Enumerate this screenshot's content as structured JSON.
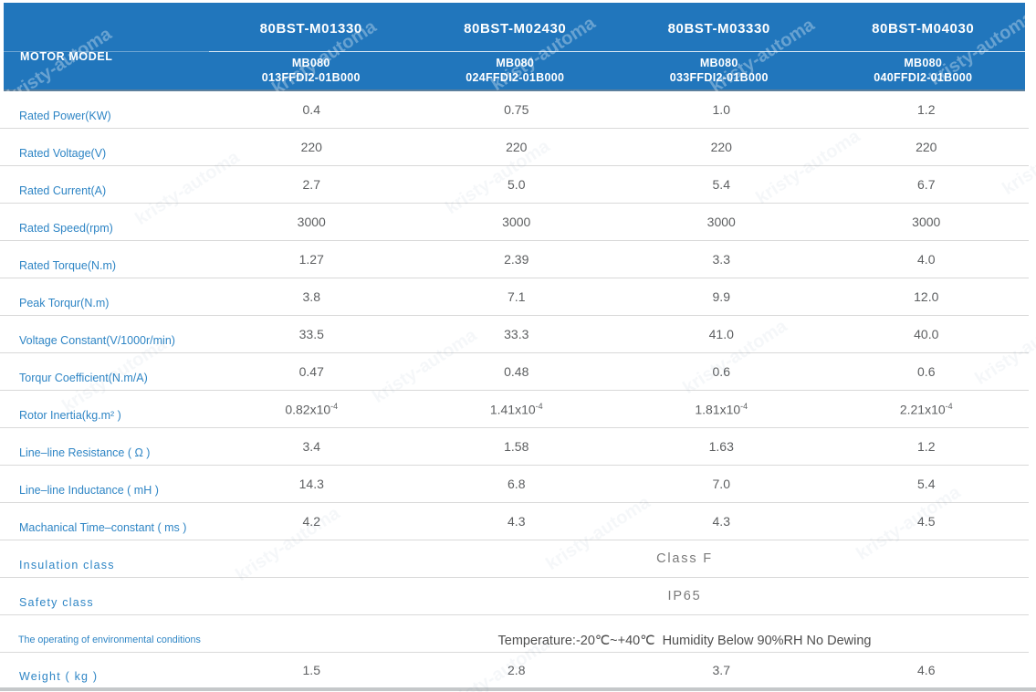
{
  "watermark": {
    "text": "kristy-automa"
  },
  "header": {
    "row_label": "MOTOR MODEL",
    "columns": [
      {
        "model": "80BST-M01330",
        "series": "MB080",
        "part": "013FFDI2-01B000"
      },
      {
        "model": "80BST-M02430",
        "series": "MB080",
        "part": "024FFDI2-01B000"
      },
      {
        "model": "80BST-M03330",
        "series": "MB080",
        "part": "033FFDI2-01B000"
      },
      {
        "model": "80BST-M04030",
        "series": "MB080",
        "part": "040FFDI2-01B000"
      }
    ]
  },
  "colors": {
    "header_bg": "#2176bc",
    "label_blue": "#2e85c5",
    "value_gray": "#5d5f61",
    "separator": "#d9d9d9",
    "bottom_bar": "#c5c8ca"
  },
  "table": {
    "rows": [
      {
        "label": "Rated Power(KW)",
        "values": [
          "0.4",
          "0.75",
          "1.0",
          "1.2"
        ]
      },
      {
        "label": "Rated Voltage(V)",
        "values": [
          "220",
          "220",
          "220",
          "220"
        ]
      },
      {
        "label": "Rated Current(A)",
        "values": [
          "2.7",
          "5.0",
          "5.4",
          "6.7"
        ]
      },
      {
        "label": "Rated Speed(rpm)",
        "values": [
          "3000",
          "3000",
          "3000",
          "3000"
        ]
      },
      {
        "label": "Rated Torque(N.m)",
        "values": [
          "1.27",
          "2.39",
          "3.3",
          "4.0"
        ]
      },
      {
        "label": "Peak Torqur(N.m)",
        "values": [
          "3.8",
          "7.1",
          "9.9",
          "12.0"
        ]
      },
      {
        "label": "Voltage Constant(V/1000r/min)",
        "values": [
          "33.5",
          "33.3",
          "41.0",
          "40.0"
        ]
      },
      {
        "label": "Torqur Coefficient(N.m/A)",
        "values": [
          "0.47",
          "0.48",
          "0.6",
          "0.6"
        ]
      },
      {
        "label": "Rotor Inertia(kg.m² )",
        "values": [
          "0.82x10^-4",
          "1.41x10^-4",
          "1.81x10^-4",
          "2.21x10^-4"
        ]
      },
      {
        "label": "Line–line Resistance ( Ω )",
        "values": [
          "3.4",
          "1.58",
          "1.63",
          "1.2"
        ]
      },
      {
        "label": "Line–line Inductance ( mH )",
        "values": [
          "14.3",
          "6.8",
          "7.0",
          "5.4"
        ]
      },
      {
        "label": "Machanical Time–constant ( ms )",
        "values": [
          "4.2",
          "4.3",
          "4.3",
          "4.5"
        ]
      },
      {
        "label": "Insulation class",
        "label_style": "spaced",
        "merged": "Class F",
        "merged_style": "spaced"
      },
      {
        "label": "Safety class",
        "label_style": "spaced",
        "merged": "IP65",
        "merged_style": "spaced"
      },
      {
        "label": "The operating of environmental conditions",
        "label_style": "condensed",
        "merged": "Temperature:-20℃~+40℃  Humidity Below 90%RH No Dewing",
        "merged_style": "low"
      },
      {
        "label": "Weight ( kg )",
        "label_style": "spaced",
        "values": [
          "1.5",
          "2.8",
          "3.7",
          "4.6"
        ]
      }
    ]
  }
}
